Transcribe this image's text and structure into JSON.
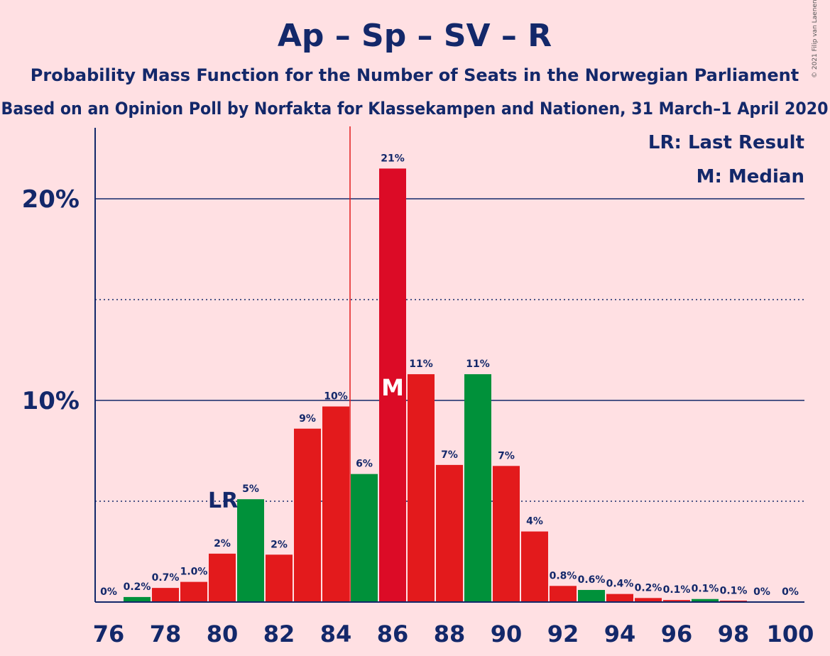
{
  "chart_data": {
    "type": "bar",
    "title": "Ap – Sp – SV – R",
    "subtitle": "Probability Mass Function for the Number of Seats in the Norwegian Parliament",
    "subtitle2": "Based on an Opinion Poll by Norfakta for Klassekampen and Nationen, 31 March–1 April 2020",
    "copyright": "© 2021 Filip van Laenen",
    "x": [
      76,
      77,
      78,
      79,
      80,
      81,
      82,
      83,
      84,
      85,
      86,
      87,
      88,
      89,
      90,
      91,
      92,
      93,
      94,
      95,
      96,
      97,
      98,
      99,
      100
    ],
    "values": [
      0,
      0.25,
      0.7,
      1.0,
      2.4,
      5.1,
      2.35,
      8.6,
      9.7,
      6.35,
      21.5,
      11.3,
      6.8,
      11.3,
      6.75,
      3.5,
      0.8,
      0.6,
      0.4,
      0.2,
      0.1,
      0.15,
      0.05,
      0,
      0
    ],
    "labels": [
      "0%",
      "0.2%",
      "0.7%",
      "1.0%",
      "2%",
      "5%",
      "2%",
      "9%",
      "10%",
      "6%",
      "21%",
      "11%",
      "7%",
      "11%",
      "7%",
      "4%",
      "0.8%",
      "0.6%",
      "0.4%",
      "0.2%",
      "0.1%",
      "0.1%",
      "0.1%",
      "0%",
      "0%"
    ],
    "bar_colors": [
      "#E31A1C",
      "#00913A",
      "#E31A1C",
      "#E31A1C",
      "#E31A1C",
      "#00913A",
      "#E31A1C",
      "#E31A1C",
      "#E31A1C",
      "#00913A",
      "#DC0B26",
      "#E31A1C",
      "#E31A1C",
      "#00913A",
      "#E31A1C",
      "#E31A1C",
      "#E31A1C",
      "#00913A",
      "#E31A1C",
      "#E31A1C",
      "#E31A1C",
      "#00913A",
      "#E31A1C",
      "#E31A1C",
      "#E31A1C"
    ],
    "x_ticks": [
      "76",
      "78",
      "80",
      "82",
      "84",
      "86",
      "88",
      "90",
      "92",
      "94",
      "96",
      "98",
      "100"
    ],
    "y_ticks": [
      "10%",
      "20%"
    ],
    "ylim": [
      0,
      23.5
    ],
    "majority_line_x": 84.5,
    "last_result_x": 80,
    "last_result_label": "LR",
    "median_x": 86,
    "median_label": "M",
    "legend": [
      "LR: Last Result",
      "M: Median"
    ],
    "colors": {
      "axis": "#13286A",
      "majority_line": "#E31A1C",
      "background": "#FFE0E3"
    }
  }
}
